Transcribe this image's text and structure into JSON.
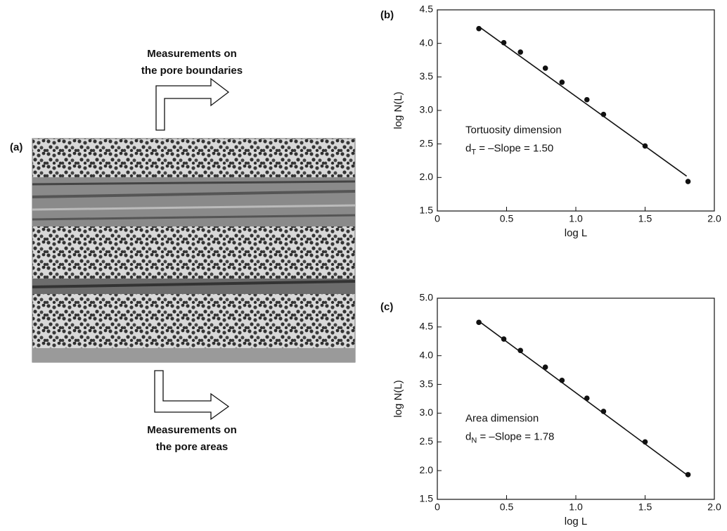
{
  "figure": {
    "panel_label": "(a)",
    "top_caption": [
      "Measurements on",
      "the pore boundaries"
    ],
    "bottom_caption": [
      "Measurements on",
      "the pore areas"
    ]
  },
  "chart_data": [
    {
      "type": "scatter",
      "panel_label": "(b)",
      "x_label": "log L",
      "y_label": "log N(L)",
      "x": [
        0.3,
        0.48,
        0.6,
        0.78,
        0.9,
        1.08,
        1.2,
        1.5,
        1.81
      ],
      "values": [
        4.22,
        4.01,
        3.87,
        3.63,
        3.42,
        3.16,
        2.94,
        2.47,
        1.94
      ],
      "fit_x": [
        0.3,
        1.8
      ],
      "fit_values": [
        4.25,
        2.02
      ],
      "color": "#111111",
      "xlim": [
        0,
        2
      ],
      "ylim": [
        1.5,
        4.5
      ],
      "xticks": [
        0,
        0.5,
        {
          "value": 1,
          "label": "1.0"
        },
        1.5,
        {
          "value": 2,
          "label": "2.0"
        }
      ],
      "yticks": [
        1.5,
        {
          "value": 2,
          "label": "2.0"
        },
        2.5,
        {
          "value": 3,
          "label": "3.0"
        },
        3.5,
        {
          "value": 4,
          "label": "4.0"
        },
        4.5
      ],
      "annotation": {
        "title": "Tortuosity dimension",
        "symbol": "d",
        "subscript": "T",
        "formula": " = –Slope  = 1.50"
      }
    },
    {
      "type": "scatter",
      "panel_label": "(c)",
      "x_label": "log L",
      "y_label": "log N(L)",
      "x": [
        0.3,
        0.48,
        0.6,
        0.78,
        0.9,
        1.08,
        1.2,
        1.5,
        1.81
      ],
      "values": [
        4.58,
        4.29,
        4.09,
        3.8,
        3.57,
        3.26,
        3.03,
        2.5,
        1.93
      ],
      "fit_x": [
        0.3,
        1.8
      ],
      "fit_values": [
        4.6,
        1.93
      ],
      "color": "#111111",
      "xlim": [
        0,
        2
      ],
      "ylim": [
        1.5,
        5
      ],
      "xticks": [
        0,
        0.5,
        {
          "value": 1,
          "label": "1.0"
        },
        1.5,
        {
          "value": 2,
          "label": "2.0"
        }
      ],
      "yticks": [
        1.5,
        {
          "value": 2,
          "label": "2.0"
        },
        2.5,
        {
          "value": 3,
          "label": "3.0"
        },
        3.5,
        {
          "value": 4,
          "label": "4.0"
        },
        4.5,
        {
          "value": 5,
          "label": "5.0"
        }
      ],
      "annotation": {
        "title": "Area dimension",
        "symbol": "d",
        "subscript": "N",
        "formula": " = –Slope  = 1.78"
      }
    }
  ]
}
